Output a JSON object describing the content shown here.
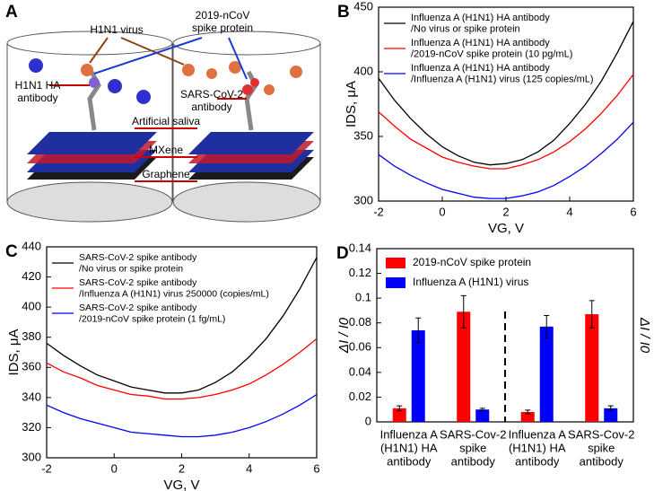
{
  "diagram": {
    "panel": "A",
    "labels": {
      "h1n1_virus": "H1N1 virus",
      "spike_protein": [
        "2019-nCoV",
        "spike protein"
      ],
      "h1n1_ha_antibody": [
        "H1N1 HA",
        "antibody"
      ],
      "sars_antibody": [
        "SARS-CoV-2",
        "antibody"
      ],
      "saliva": "Artificial saliva",
      "mxene": "MXene",
      "graphene": "Graphene"
    }
  },
  "chart_data": [
    {
      "panel": "B",
      "type": "line",
      "xlabel": "VG, V",
      "ylabel": "IDS, μA",
      "x": [
        -2,
        -1.5,
        -1,
        -0.5,
        0,
        0.5,
        1,
        1.5,
        2,
        2.5,
        3,
        3.5,
        4,
        4.5,
        5,
        5.5,
        6
      ],
      "xlim": [
        -2,
        6
      ],
      "xticks": [
        -2,
        0,
        2,
        4,
        6
      ],
      "ylim": [
        300,
        450
      ],
      "yticks": [
        300,
        350,
        400,
        450
      ],
      "series": [
        {
          "name": [
            "Influenza A (H1N1) HA antibody",
            "/No virus or spike protein"
          ],
          "color": "#000000",
          "values": [
            395,
            378,
            364,
            352,
            342,
            335,
            330,
            328,
            329,
            332,
            338,
            347,
            360,
            375,
            393,
            415,
            439
          ]
        },
        {
          "name": [
            "Influenza A (H1N1) HA antibody",
            "/2019-nCoV spike protein (10 pg/mL)"
          ],
          "color": "#ff0000",
          "values": [
            369,
            358,
            348,
            341,
            334,
            330,
            327,
            325,
            325,
            328,
            332,
            338,
            346,
            356,
            368,
            382,
            398
          ]
        },
        {
          "name": [
            "Influenza A (H1N1) HA antibody",
            "/Influenza A (H1N1) virus (125 copies/mL)"
          ],
          "color": "#0000ff",
          "values": [
            336,
            327,
            320,
            314,
            309,
            306,
            303,
            302,
            302,
            304,
            307,
            312,
            319,
            327,
            337,
            348,
            361
          ]
        }
      ]
    },
    {
      "panel": "C",
      "type": "line",
      "xlabel": "VG, V",
      "ylabel": "IDS, μA",
      "x": [
        -2,
        -1.5,
        -1,
        -0.5,
        0,
        0.5,
        1,
        1.5,
        2,
        2.5,
        3,
        3.5,
        4,
        4.5,
        5,
        5.5,
        6
      ],
      "xlim": [
        -2,
        6
      ],
      "xticks": [
        -2,
        0,
        2,
        4,
        6
      ],
      "ylim": [
        300,
        440
      ],
      "yticks": [
        300,
        320,
        340,
        360,
        380,
        400,
        420,
        440
      ],
      "series": [
        {
          "name": [
            "SARS-CoV-2 spike antibody",
            "/No virus or spike protein"
          ],
          "color": "#000000",
          "values": [
            376,
            368,
            361,
            355,
            351,
            347,
            345,
            343,
            343,
            345,
            350,
            357,
            367,
            379,
            394,
            412,
            433
          ]
        },
        {
          "name": [
            "SARS-CoV-2 spike antibody",
            "/Influenza A (H1N1) virus 250000 (copies/mL)"
          ],
          "color": "#ff0000",
          "values": [
            363,
            357,
            353,
            348,
            345,
            342,
            341,
            339,
            339,
            340,
            342,
            345,
            349,
            355,
            362,
            370,
            379
          ]
        },
        {
          "name": [
            "SARS-CoV-2 spike antibody",
            "/2019-nCoV spike protein (1 fg/mL)"
          ],
          "color": "#0000ff",
          "values": [
            335,
            330,
            326,
            323,
            320,
            317,
            316,
            315,
            314,
            314,
            315,
            317,
            320,
            324,
            329,
            335,
            342
          ]
        }
      ]
    },
    {
      "panel": "D",
      "type": "bar",
      "ylabel": "ΔI / I0",
      "ylabel_right": "ΔI / I0",
      "categories": [
        [
          "Influenza A",
          "(H1N1) HA",
          "antibody"
        ],
        [
          "SARS-Cov-2",
          "spike",
          "antibody"
        ],
        [
          "Influenza A",
          "(H1N1) HA",
          "antibody"
        ],
        [
          "SARS-Cov-2",
          "spike",
          "antibody"
        ]
      ],
      "ylim": [
        0,
        0.14
      ],
      "yticks": [
        0,
        0.02,
        0.04,
        0.06,
        0.08,
        0.1,
        0.12,
        0.14
      ],
      "series": [
        {
          "name": "2019-nCoV spike protein",
          "color": "#ff0000",
          "values": [
            0.011,
            0.089,
            0.008,
            0.087
          ],
          "errors": [
            0.002,
            0.013,
            0.0015,
            0.011
          ]
        },
        {
          "name": "Influenza A (H1N1) virus",
          "color": "#0000ff",
          "values": [
            0.074,
            0.01,
            0.077,
            0.011
          ],
          "errors": [
            0.01,
            0.001,
            0.009,
            0.002
          ]
        }
      ]
    }
  ]
}
